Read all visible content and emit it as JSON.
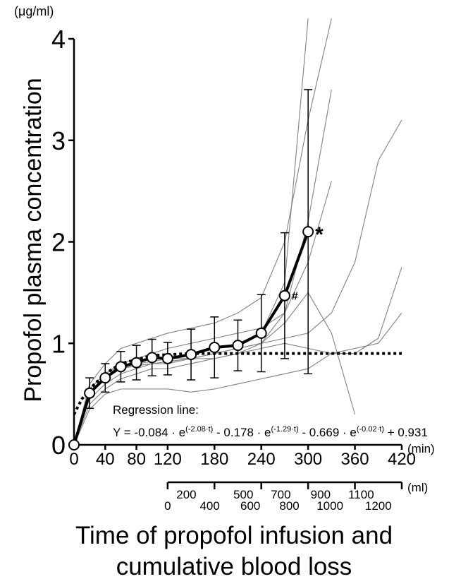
{
  "chart_data": {
    "type": "line",
    "y_unit": "(μg/ml)",
    "y_label": "Propofol plasma concentration",
    "x_unit": "(min)",
    "x_title_lines": [
      "Time of propofol infusion and",
      "cumulative blood loss"
    ],
    "xlim": [
      0,
      420
    ],
    "xticks": [
      0,
      40,
      80,
      120,
      180,
      240,
      300,
      360,
      420
    ],
    "ylim": [
      0,
      4
    ],
    "yticks": [
      0,
      1,
      2,
      3,
      4
    ],
    "mean": {
      "color": "#000000",
      "x": [
        0,
        20,
        40,
        60,
        80,
        100,
        120,
        150,
        180,
        210,
        240,
        270,
        300
      ],
      "values": [
        0,
        0.51,
        0.66,
        0.77,
        0.81,
        0.86,
        0.85,
        0.89,
        0.96,
        0.98,
        1.1,
        1.47,
        2.1
      ],
      "errors": [
        0,
        0.15,
        0.14,
        0.15,
        0.17,
        0.18,
        0.16,
        0.25,
        0.3,
        0.25,
        0.38,
        0.62,
        1.4
      ]
    },
    "individual_x": [
      0,
      20,
      40,
      60,
      80,
      100,
      120,
      150,
      180,
      210,
      240,
      270,
      300,
      330,
      360,
      390,
      420
    ],
    "individual_color": "#8a8a8a",
    "individual": [
      {
        "values": [
          0,
          0.55,
          0.7,
          0.78,
          0.8,
          0.82,
          0.85,
          0.88,
          0.95,
          1.0,
          1.1,
          1.6,
          4.2,
          null,
          null,
          null,
          null
        ]
      },
      {
        "values": [
          0,
          0.6,
          0.8,
          0.95,
          1.0,
          1.05,
          1.1,
          1.15,
          1.2,
          1.3,
          1.45,
          2.0,
          3.2,
          4.2,
          null,
          null,
          null
        ]
      },
      {
        "values": [
          0,
          0.45,
          0.6,
          0.7,
          0.75,
          0.8,
          0.8,
          0.85,
          0.85,
          0.9,
          1.0,
          1.3,
          2.2,
          3.5,
          null,
          null,
          null
        ]
      },
      {
        "values": [
          0,
          0.5,
          0.65,
          0.75,
          0.8,
          0.85,
          0.85,
          0.85,
          0.9,
          0.95,
          1.0,
          1.05,
          1.1,
          1.3,
          1.8,
          2.8,
          3.2
        ]
      },
      {
        "values": [
          0,
          0.4,
          0.55,
          0.65,
          0.7,
          0.75,
          0.75,
          0.8,
          0.85,
          0.9,
          0.95,
          1.0,
          0.95,
          0.9,
          0.9,
          1.05,
          1.75
        ]
      },
      {
        "values": [
          0,
          0.35,
          0.5,
          0.55,
          0.55,
          0.55,
          0.55,
          0.52,
          0.55,
          0.6,
          0.65,
          0.7,
          0.75,
          0.9,
          0.95,
          1.0,
          1.3
        ]
      },
      {
        "values": [
          0,
          0.55,
          0.7,
          0.8,
          0.85,
          0.9,
          0.95,
          1.0,
          1.05,
          1.1,
          1.15,
          1.3,
          1.8,
          2.6,
          null,
          null,
          null
        ]
      },
      {
        "values": [
          0,
          0.5,
          0.65,
          0.75,
          0.78,
          0.8,
          0.82,
          0.85,
          0.9,
          0.95,
          1.0,
          1.2,
          1.5,
          1.1,
          0.3,
          null,
          null
        ]
      }
    ],
    "regression": {
      "label": "Regression line:",
      "equation_parts": [
        "Y = -0.084 · e",
        "(-2.08·t)",
        " - 0.178 · e",
        "(-1.29·t)",
        " - 0.669 · e",
        "(-0.02·t)",
        " + 0.931"
      ],
      "x": [
        0,
        10,
        20,
        40,
        60,
        100,
        150,
        200,
        420
      ],
      "values": [
        0.3,
        0.45,
        0.55,
        0.7,
        0.8,
        0.88,
        0.9,
        0.9,
        0.9
      ]
    },
    "annotations": [
      {
        "text": "*",
        "x": 300,
        "y": 2.1
      },
      {
        "text": "#",
        "x": 270,
        "y": 1.47
      }
    ],
    "blood_loss_unit": "(ml)",
    "blood_loss_ticks": [
      {
        "label": "0",
        "at_min": 120
      },
      {
        "label": "200",
        "at_min": 144
      },
      {
        "label": "400",
        "at_min": 174
      },
      {
        "label": "500",
        "at_min": 217
      },
      {
        "label": "600",
        "at_min": 226
      },
      {
        "label": "700",
        "at_min": 265
      },
      {
        "label": "800",
        "at_min": 276
      },
      {
        "label": "900",
        "at_min": 316
      },
      {
        "label": "1000",
        "at_min": 328
      },
      {
        "label": "1100",
        "at_min": 368
      },
      {
        "label": "1200",
        "at_min": 390
      }
    ]
  }
}
